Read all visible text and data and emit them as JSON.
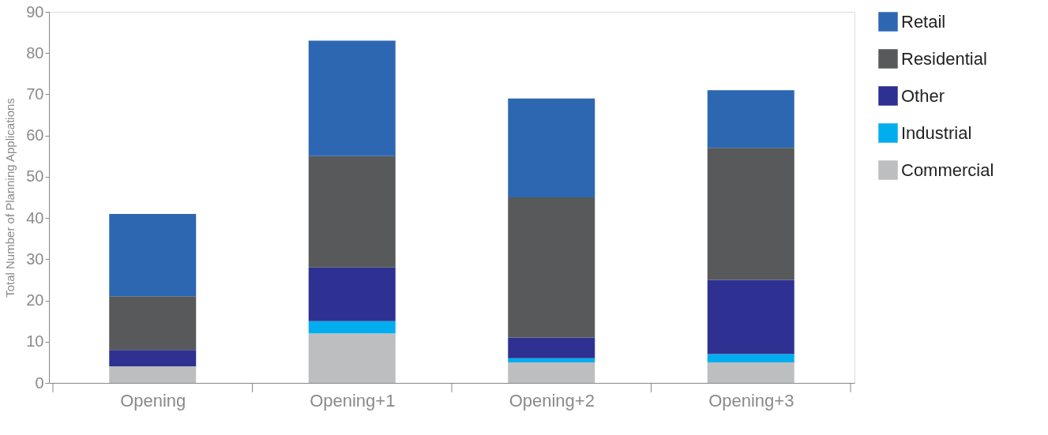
{
  "chart_data": {
    "type": "bar",
    "stacked": true,
    "ylabel": "Total Number of Planning Applications",
    "categories": [
      "Opening",
      "Opening+1",
      "Opening+2",
      "Opening+3"
    ],
    "series": [
      {
        "name": "Commercial",
        "color": "#bcbec0",
        "values": [
          4,
          12,
          5,
          5
        ]
      },
      {
        "name": "Industrial",
        "color": "#00aeef",
        "values": [
          0,
          3,
          1,
          2
        ]
      },
      {
        "name": "Other",
        "color": "#2e3192",
        "values": [
          4,
          13,
          5,
          18
        ]
      },
      {
        "name": "Residential",
        "color": "#58595b",
        "values": [
          13,
          27,
          34,
          32
        ]
      },
      {
        "name": "Retail",
        "color": "#2e67b1",
        "values": [
          20,
          28,
          24,
          14
        ]
      }
    ],
    "ylim": [
      0,
      90
    ],
    "yticks": [
      0,
      10,
      20,
      30,
      40,
      50,
      60,
      70,
      80,
      90
    ],
    "grid": false,
    "legend": "right"
  }
}
